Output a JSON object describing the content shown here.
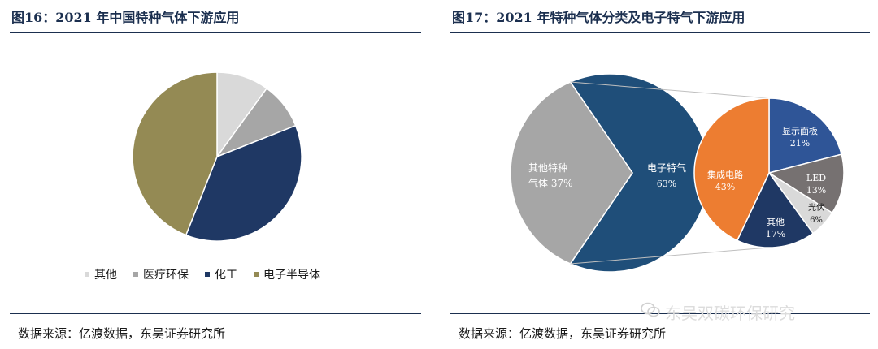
{
  "left": {
    "title": "图16：2021 年中国特种气体下游应用",
    "source": "数据来源：亿渡数据，东吴证券研究所",
    "chart_data": {
      "type": "pie",
      "title": "2021 年中国特种气体下游应用",
      "slices": [
        {
          "label": "其他",
          "value": 10,
          "color": "#d9d9d9"
        },
        {
          "label": "医疗环保",
          "value": 9,
          "color": "#a6a6a6"
        },
        {
          "label": "化工",
          "value": 37,
          "color": "#1f3864"
        },
        {
          "label": "电子半导体",
          "value": 44,
          "color": "#948a54"
        }
      ],
      "legend": "bottom"
    }
  },
  "right": {
    "title": "图17：2021 年特种气体分类及电子特气下游应用",
    "source": "数据来源：亿渡数据，东吴证券研究所",
    "watermark": "东吴双碳环保研究",
    "chart_data": {
      "type": "pie",
      "title": "2021 年特种气体分类及电子特气下游应用",
      "main": [
        {
          "label": "电子特气",
          "value": 63,
          "pct": "63%",
          "color": "#1f4e79"
        },
        {
          "label": "其他特种气体",
          "pct": "37%",
          "value": 37,
          "color": "#a6a6a6",
          "label_lines": [
            "其他特种",
            "气体  37%"
          ]
        }
      ],
      "breakdown_of": "电子特气",
      "sub": [
        {
          "label": "显示面板",
          "value": 21,
          "pct": "21%",
          "color": "#2f5597"
        },
        {
          "label": "LED",
          "value": 13,
          "pct": "13%",
          "color": "#767171"
        },
        {
          "label": "光伏",
          "value": 6,
          "pct": "6%",
          "color": "#d9d9d9"
        },
        {
          "label": "其他",
          "value": 17,
          "pct": "17%",
          "color": "#1f3864"
        },
        {
          "label": "集成电路",
          "value": 43,
          "pct": "43%",
          "color": "#ed7d31"
        }
      ]
    }
  }
}
